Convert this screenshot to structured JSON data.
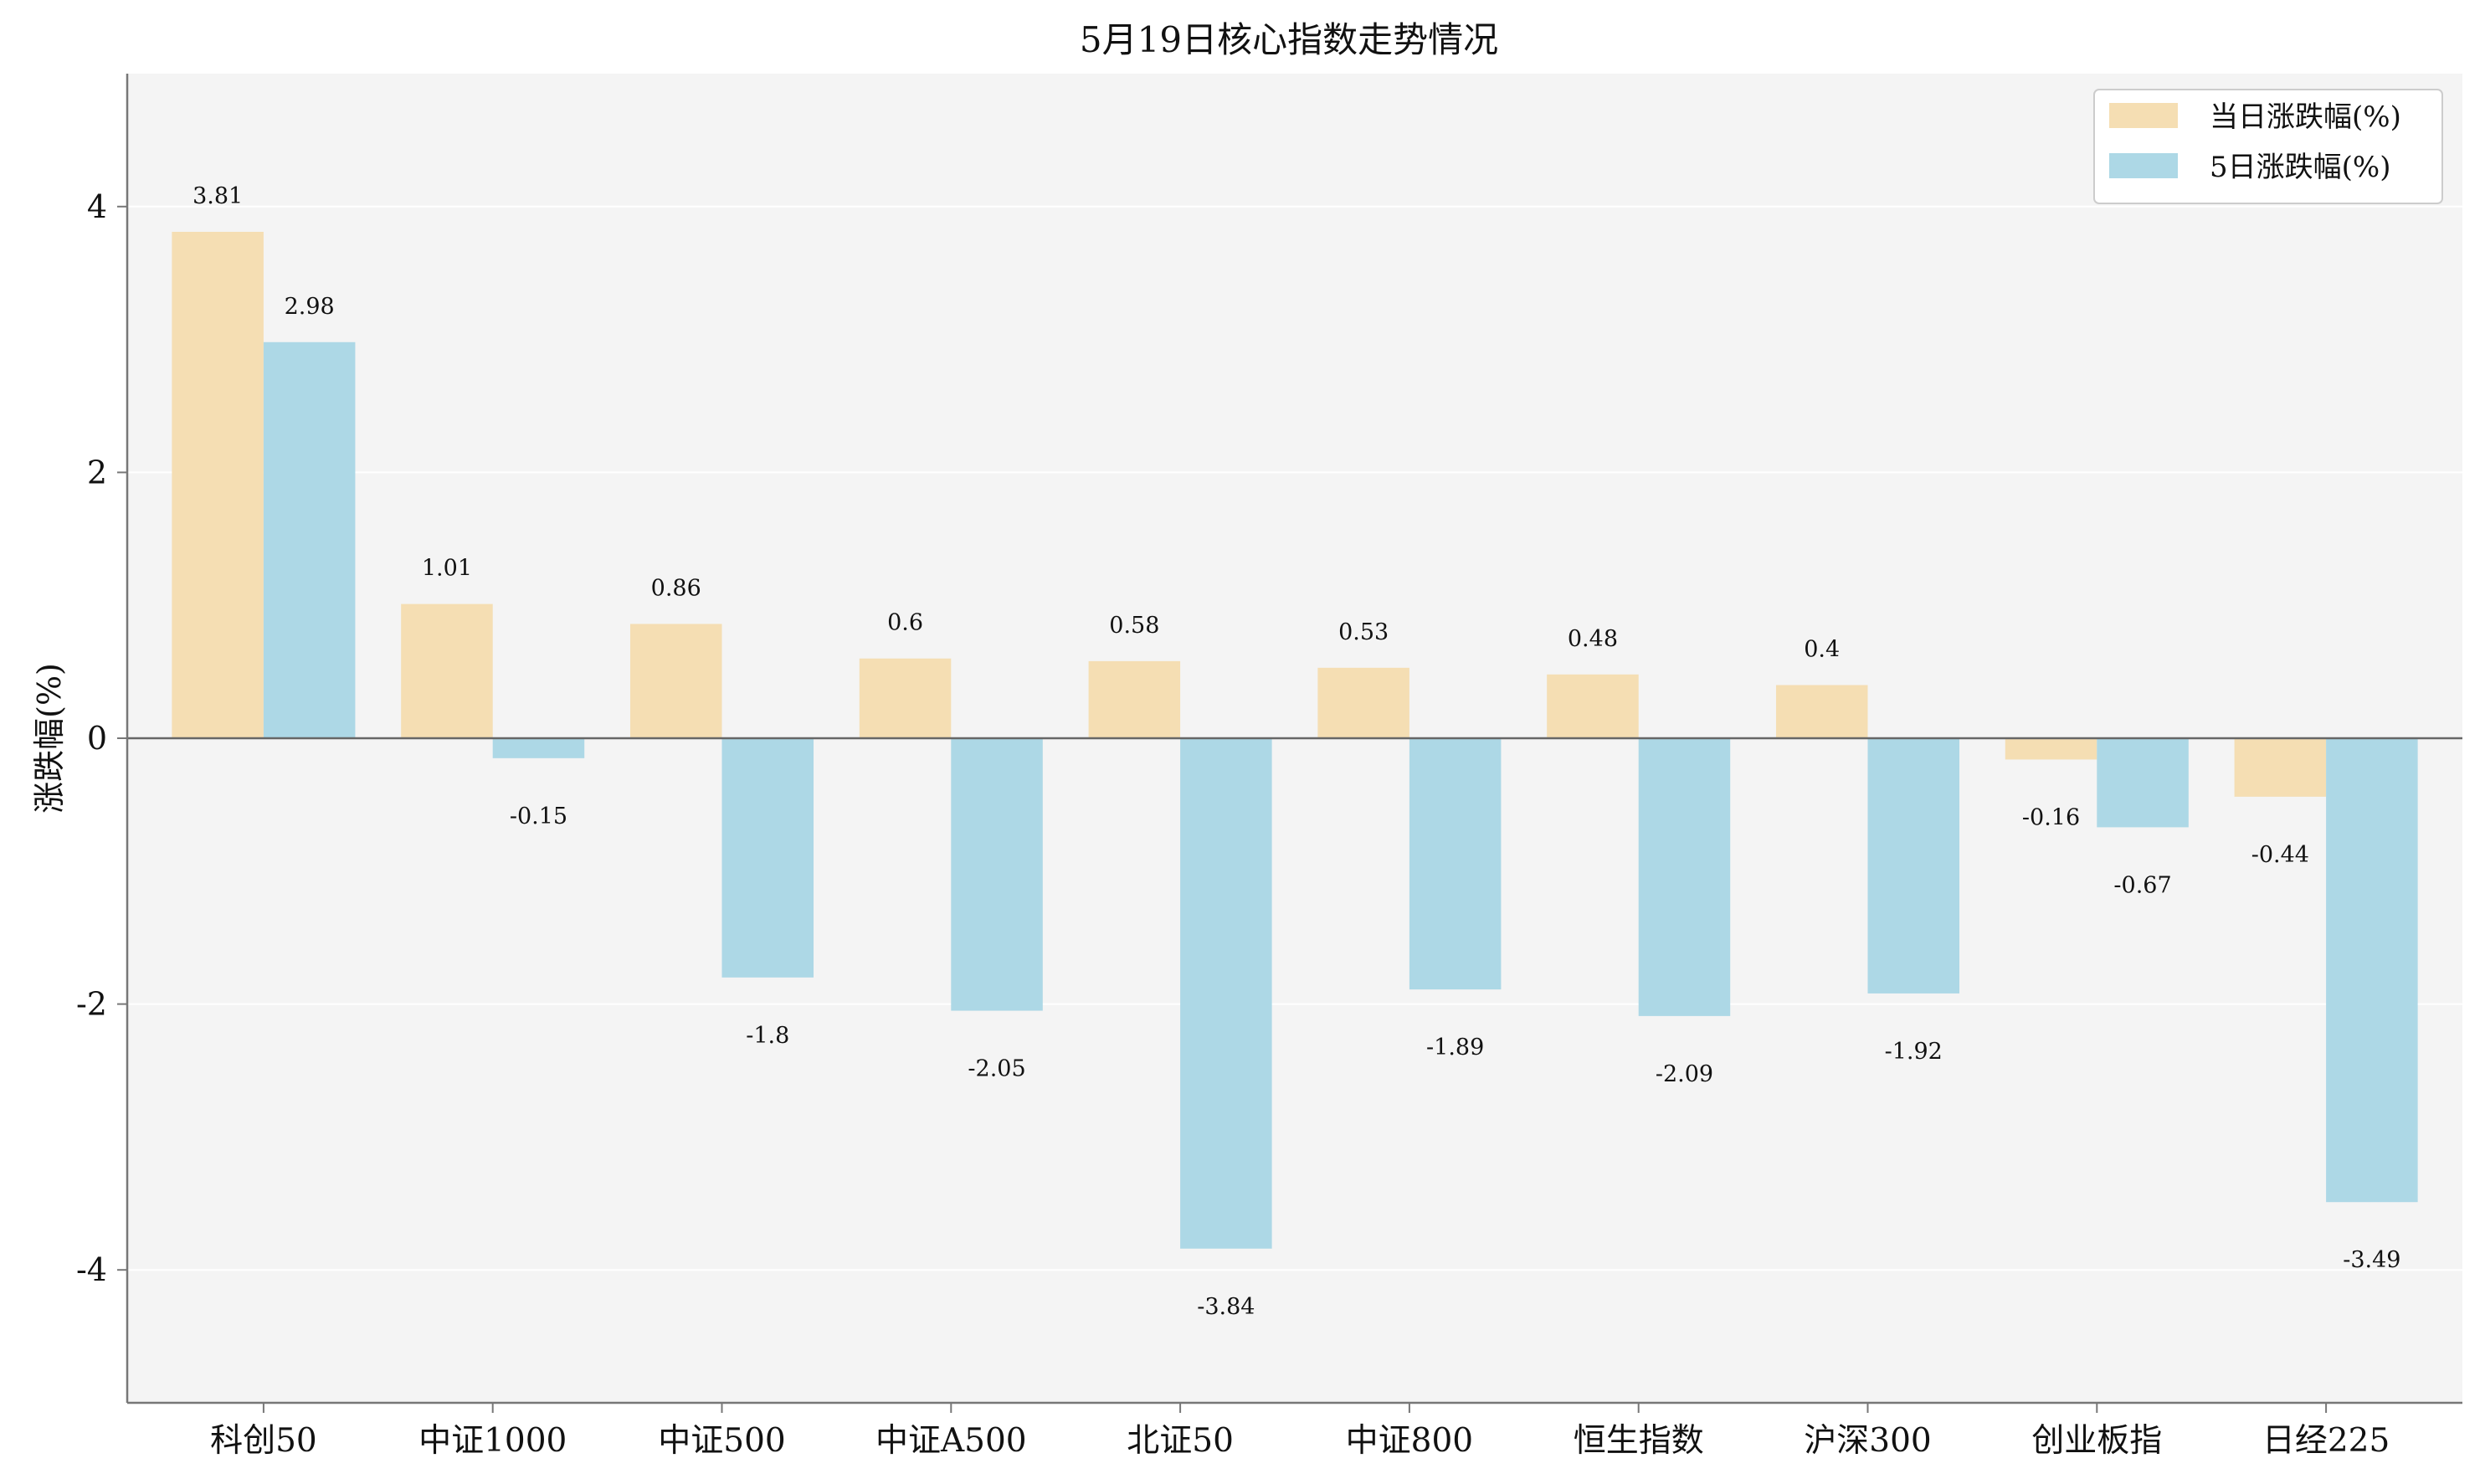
{
  "chart_data": {
    "type": "bar",
    "title": "5月19日核心指数走势情况",
    "xlabel": "",
    "ylabel": "涨跌幅(%)",
    "ylim": [
      -5,
      5
    ],
    "yticks": [
      -4,
      -2,
      0,
      2,
      4
    ],
    "grid": true,
    "legend_position": "top-right",
    "categories": [
      "科创50",
      "中证1000",
      "中证500",
      "中证A500",
      "北证50",
      "中证800",
      "恒生指数",
      "沪深300",
      "创业板指",
      "日经225"
    ],
    "series": [
      {
        "name": "当日涨跌幅(%)",
        "color": "#F5DEB3",
        "values": [
          3.81,
          1.01,
          0.86,
          0.6,
          0.58,
          0.53,
          0.48,
          0.4,
          -0.16,
          -0.44
        ]
      },
      {
        "name": "5日涨跌幅(%)",
        "color": "#ADD8E6",
        "values": [
          2.98,
          -0.15,
          -1.8,
          -2.05,
          -3.84,
          -1.89,
          -2.09,
          -1.92,
          -0.67,
          -3.49
        ]
      }
    ],
    "value_labels": [
      [
        "3.81",
        "1.01",
        "0.86",
        "0.6",
        "0.58",
        "0.53",
        "0.48",
        "0.4",
        "-0.16",
        "-0.44"
      ],
      [
        "2.98",
        "-0.15",
        "-1.8",
        "-2.05",
        "-3.84",
        "-1.89",
        "-2.09",
        "-1.92",
        "-0.67",
        "-3.49"
      ]
    ],
    "plot_background": "#F4F4F4",
    "grid_color": "#FFFFFF",
    "axis_color": "#777777"
  }
}
